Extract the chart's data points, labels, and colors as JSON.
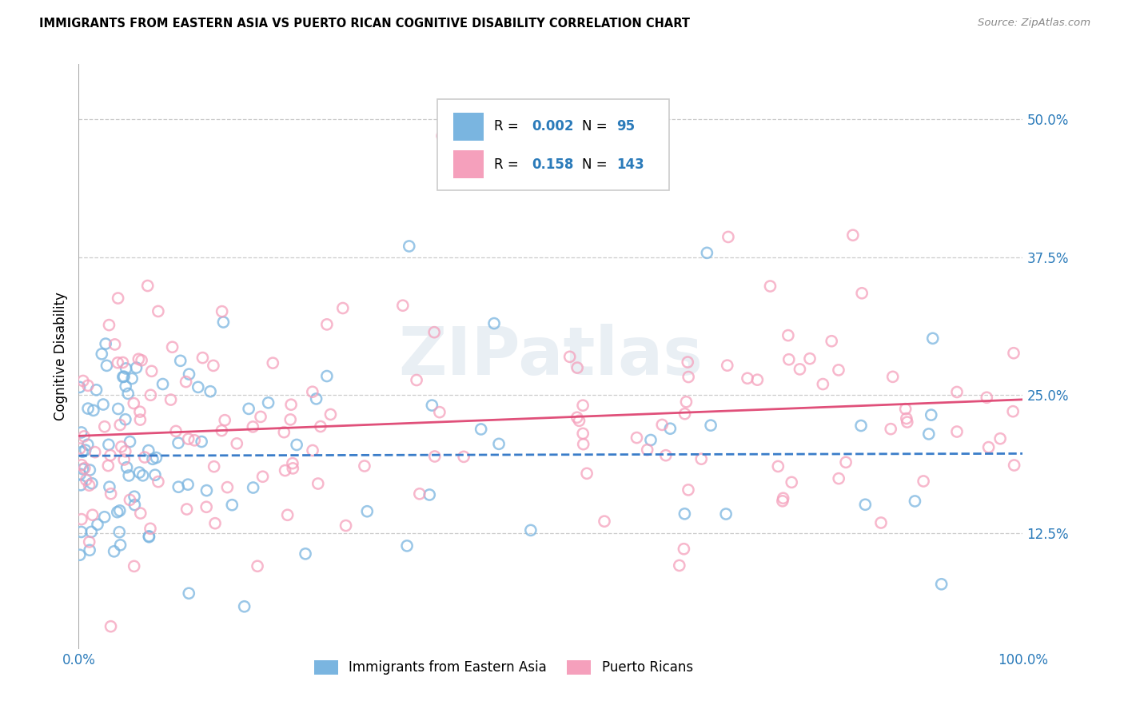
{
  "title": "IMMIGRANTS FROM EASTERN ASIA VS PUERTO RICAN COGNITIVE DISABILITY CORRELATION CHART",
  "source": "Source: ZipAtlas.com",
  "ylabel": "Cognitive Disability",
  "xlim": [
    0.0,
    1.0
  ],
  "ylim": [
    0.02,
    0.55
  ],
  "blue_R": "0.002",
  "blue_N": "95",
  "pink_R": "0.158",
  "pink_N": "143",
  "blue_color": "#7ab5e0",
  "pink_color": "#f5a0bc",
  "blue_line_color": "#3a7dc9",
  "pink_line_color": "#e0507a",
  "legend_label_blue": "Immigrants from Eastern Asia",
  "legend_label_pink": "Puerto Ricans",
  "watermark": "ZIPatlas",
  "blue_trend_slope": 0.002,
  "blue_trend_intercept": 0.195,
  "pink_trend_slope": 0.033,
  "pink_trend_intercept": 0.213
}
